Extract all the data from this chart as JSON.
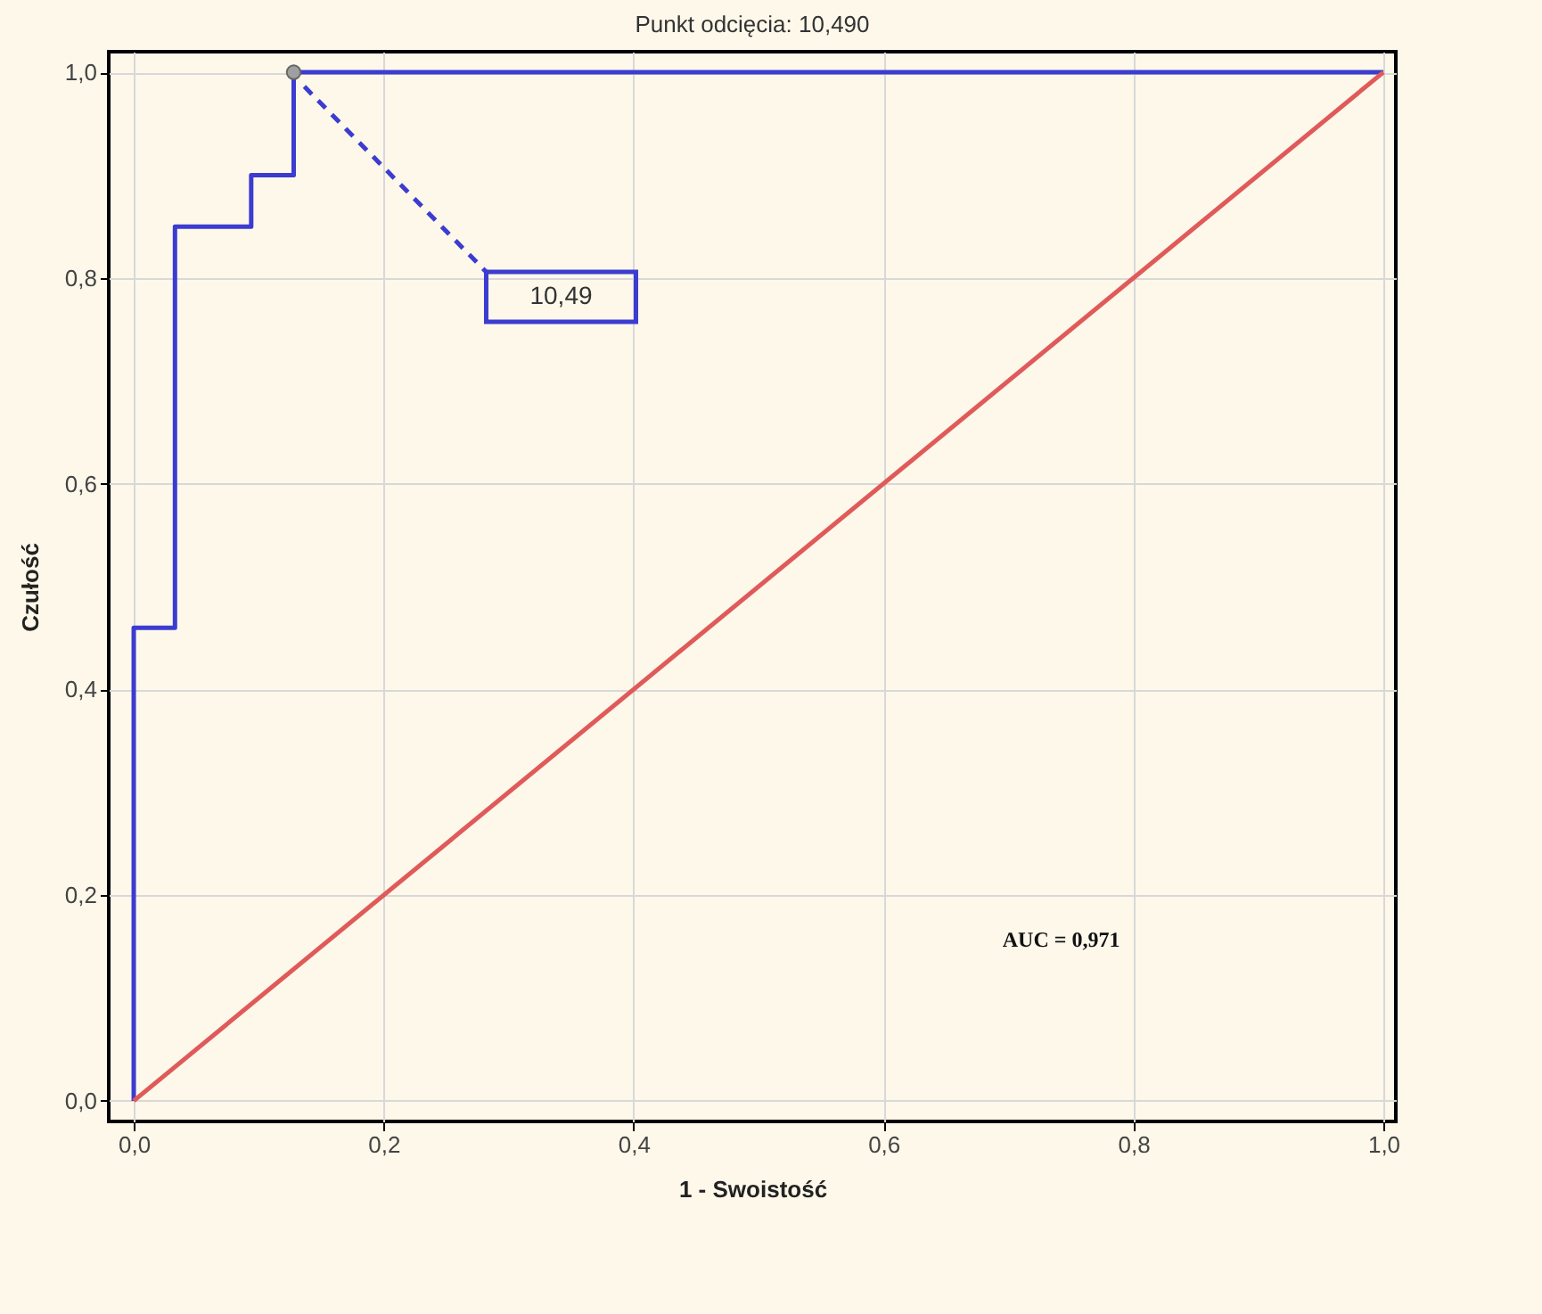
{
  "chart_data": {
    "type": "line",
    "title": "Punkt odcięcia: 10,490",
    "xlabel": "1 - Swoistość",
    "ylabel": "Czułość",
    "series": [
      {
        "color": "#3c3cd0",
        "x": [
          0,
          0,
          0.033,
          0.033,
          0.094,
          0.094,
          0.128,
          0.128,
          1
        ],
        "values": [
          0,
          0.46,
          0.46,
          0.85,
          0.85,
          0.9,
          0.9,
          1,
          1
        ]
      },
      {
        "color": "#e05a5a",
        "x": [
          0,
          1
        ],
        "values": [
          0,
          1
        ]
      },
      {
        "type": "scatter",
        "color": "#a0a0a0",
        "marker": "circle",
        "x": [
          0.128
        ],
        "values": [
          1
        ]
      }
    ],
    "annotations": [
      "AUC = 0,971",
      "10,49"
    ],
    "xlim": [
      -0.02,
      1.01
    ],
    "ylim": [
      -0.02,
      1.02
    ],
    "xticks": [
      {
        "value": 0,
        "label": "0,0"
      },
      {
        "value": 0.2,
        "label": "0,2"
      },
      {
        "value": 0.4,
        "label": "0,4"
      },
      {
        "value": 0.6,
        "label": "0,6"
      },
      {
        "value": 0.8,
        "label": "0,8"
      },
      {
        "value": 1,
        "label": "1,0"
      }
    ],
    "yticks": [
      {
        "value": 0,
        "label": "0,0"
      },
      {
        "value": 0.2,
        "label": "0,2"
      },
      {
        "value": 0.4,
        "label": "0,4"
      },
      {
        "value": 0.6,
        "label": "0,6"
      },
      {
        "value": 0.8,
        "label": "0,8"
      },
      {
        "value": 1,
        "label": "1,0"
      }
    ],
    "grid": true,
    "marker": "none",
    "line_style": "solid"
  }
}
